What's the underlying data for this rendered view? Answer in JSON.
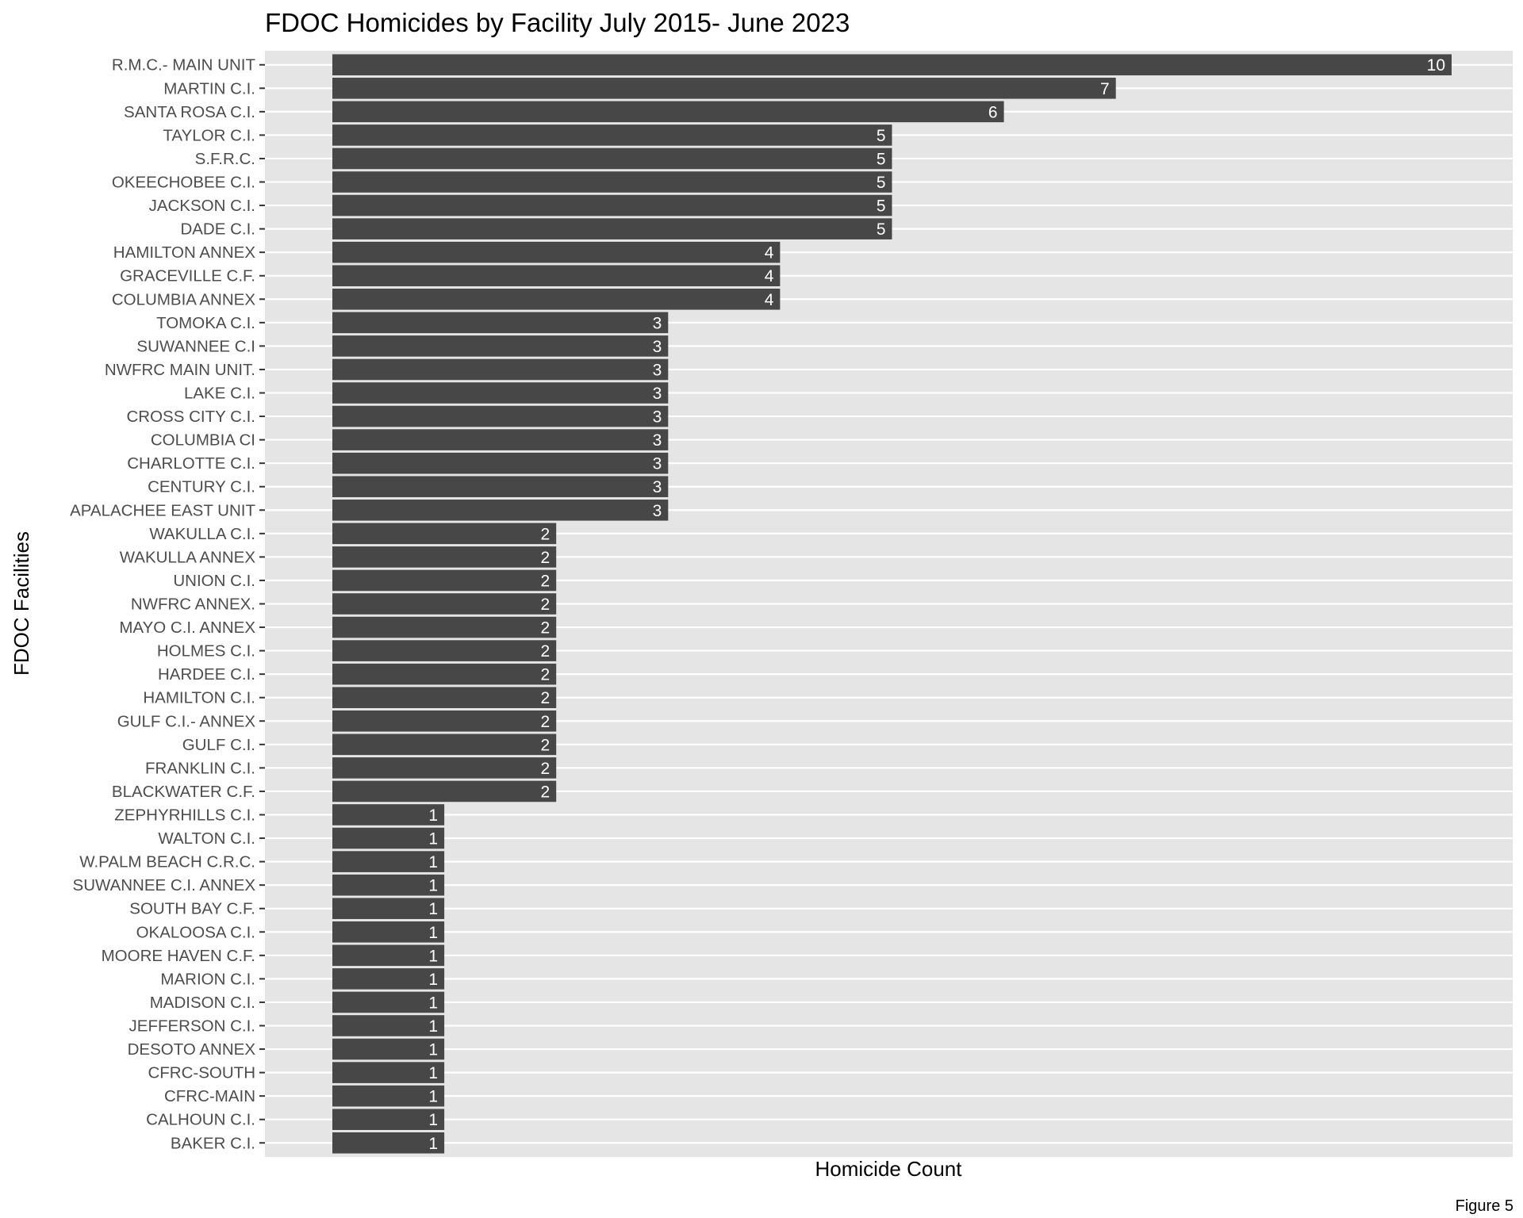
{
  "chart_data": {
    "type": "bar",
    "orientation": "horizontal",
    "title": "FDOC Homicides by Facility July 2015- June 2023",
    "xlabel": "Homicide Count",
    "ylabel": "FDOC Facilities",
    "caption": "Figure 5",
    "xlim": [
      0,
      10
    ],
    "grid": true,
    "legend": "none",
    "colors": {
      "bar": "#474747",
      "panel": "#e5e5e5",
      "grid": "#ffffff",
      "bar_label": "#ffffff"
    },
    "categories": [
      "R.M.C.- MAIN UNIT",
      "MARTIN C.I.",
      "SANTA ROSA C.I.",
      "TAYLOR C.I.",
      "S.F.R.C.",
      "OKEECHOBEE C.I.",
      "JACKSON C.I.",
      "DADE C.I.",
      "HAMILTON ANNEX",
      "GRACEVILLE C.F.",
      "COLUMBIA ANNEX",
      "TOMOKA C.I.",
      "SUWANNEE C.I",
      "NWFRC MAIN UNIT.",
      "LAKE C.I.",
      "CROSS CITY C.I.",
      "COLUMBIA CI",
      "CHARLOTTE C.I.",
      "CENTURY C.I.",
      "APALACHEE EAST UNIT",
      "WAKULLA C.I.",
      "WAKULLA ANNEX",
      "UNION C.I.",
      "NWFRC ANNEX.",
      "MAYO C.I. ANNEX",
      "HOLMES C.I.",
      "HARDEE C.I.",
      "HAMILTON C.I.",
      "GULF C.I.- ANNEX",
      "GULF C.I.",
      "FRANKLIN C.I.",
      "BLACKWATER C.F.",
      "ZEPHYRHILLS C.I.",
      "WALTON C.I.",
      "W.PALM BEACH C.R.C.",
      "SUWANNEE C.I. ANNEX",
      "SOUTH BAY C.F.",
      "OKALOOSA C.I.",
      "MOORE HAVEN C.F.",
      "MARION C.I.",
      "MADISON C.I.",
      "JEFFERSON C.I.",
      "DESOTO ANNEX",
      "CFRC-SOUTH",
      "CFRC-MAIN",
      "CALHOUN C.I.",
      "BAKER C.I."
    ],
    "values": [
      10,
      7,
      6,
      5,
      5,
      5,
      5,
      5,
      4,
      4,
      4,
      3,
      3,
      3,
      3,
      3,
      3,
      3,
      3,
      3,
      2,
      2,
      2,
      2,
      2,
      2,
      2,
      2,
      2,
      2,
      2,
      2,
      1,
      1,
      1,
      1,
      1,
      1,
      1,
      1,
      1,
      1,
      1,
      1,
      1,
      1,
      1
    ]
  }
}
